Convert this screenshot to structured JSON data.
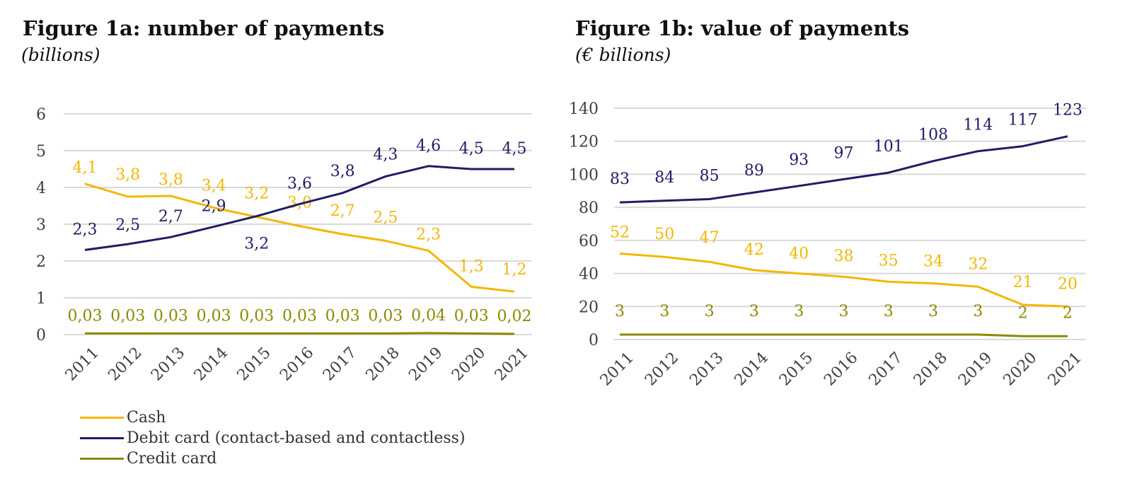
{
  "colors": {
    "cash": "#f2b705",
    "debit": "#1f1d66",
    "credit": "#8a8a00",
    "grid": "#d9d9d9",
    "axis_text": "#404040"
  },
  "legend": [
    {
      "label": "Cash",
      "color": "#f2b705"
    },
    {
      "label": "Debit card (contact-based and contactless)",
      "color": "#1f1d66"
    },
    {
      "label": "Credit card",
      "color": "#8a8a00"
    }
  ],
  "chart_data": [
    {
      "type": "line",
      "title": "Figure 1a: number of payments",
      "subtitle": "(billions)",
      "xlabel": "",
      "ylabel": "",
      "categories": [
        "2011",
        "2012",
        "2013",
        "2014",
        "2015",
        "2016",
        "2017",
        "2018",
        "2019",
        "2020",
        "2021"
      ],
      "ylim": [
        0,
        6
      ],
      "yticks": [
        "0",
        "1",
        "2",
        "3",
        "4",
        "5",
        "6"
      ],
      "grid": true,
      "series": [
        {
          "name": "Cash",
          "color": "#f2b705",
          "values": [
            4.1,
            3.75,
            3.77,
            3.45,
            3.2,
            2.95,
            2.73,
            2.55,
            2.28,
            1.3,
            1.17
          ],
          "labels": [
            "4,1",
            "3,8",
            "3,8",
            "3,4",
            "3,2",
            "3,0",
            "2,7",
            "2,5",
            "2,3",
            "1,3",
            "1,2"
          ]
        },
        {
          "name": "Debit card (contact-based and contactless)",
          "color": "#1f1d66",
          "values": [
            2.3,
            2.46,
            2.65,
            2.93,
            3.22,
            3.55,
            3.85,
            4.3,
            4.58,
            4.5,
            4.5
          ],
          "labels": [
            "2,3",
            "2,5",
            "2,7",
            "2,9",
            "3,2",
            "3,6",
            "3,8",
            "4,3",
            "4,6",
            "4,5",
            "4,5"
          ]
        },
        {
          "name": "Credit card",
          "color": "#8a8a00",
          "values": [
            0.03,
            0.03,
            0.03,
            0.03,
            0.03,
            0.03,
            0.03,
            0.03,
            0.04,
            0.03,
            0.02
          ],
          "labels": [
            "0,03",
            "0,03",
            "0,03",
            "0,03",
            "0,03",
            "0,03",
            "0,03",
            "0,03",
            "0,04",
            "0,03",
            "0,02"
          ]
        }
      ]
    },
    {
      "type": "line",
      "title": "Figure 1b: value of payments",
      "subtitle": "(€ billions)",
      "xlabel": "",
      "ylabel": "",
      "categories": [
        "2011",
        "2012",
        "2013",
        "2014",
        "2015",
        "2016",
        "2017",
        "2018",
        "2019",
        "2020",
        "2021"
      ],
      "ylim": [
        0,
        140
      ],
      "yticks": [
        "0",
        "20",
        "40",
        "60",
        "80",
        "100",
        "120",
        "140"
      ],
      "grid": true,
      "series": [
        {
          "name": "Cash",
          "color": "#f2b705",
          "values": [
            52,
            50,
            47,
            42,
            40,
            38,
            35,
            34,
            32,
            21,
            20
          ],
          "labels": [
            "52",
            "50",
            "47",
            "42",
            "40",
            "38",
            "35",
            "34",
            "32",
            "21",
            "20"
          ]
        },
        {
          "name": "Debit card (contact-based and contactless)",
          "color": "#1f1d66",
          "values": [
            83,
            84,
            85,
            89,
            93,
            97,
            101,
            108,
            114,
            117,
            123
          ],
          "labels": [
            "83",
            "84",
            "85",
            "89",
            "93",
            "97",
            "101",
            "108",
            "114",
            "117",
            "123"
          ]
        },
        {
          "name": "Credit card",
          "color": "#8a8a00",
          "values": [
            3,
            3,
            3,
            3,
            3,
            3,
            3,
            3,
            3,
            2,
            2
          ],
          "labels": [
            "3",
            "3",
            "3",
            "3",
            "3",
            "3",
            "3",
            "3",
            "3",
            "2",
            "2"
          ]
        }
      ]
    }
  ]
}
